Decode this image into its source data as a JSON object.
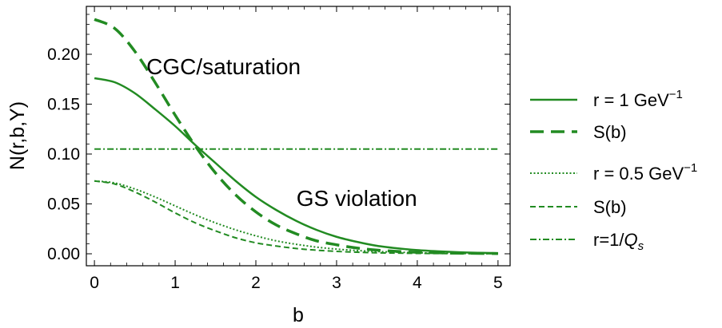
{
  "chart_data": {
    "type": "line",
    "xlabel": "b",
    "ylabel": "N(r,b,Y)",
    "xlim": [
      -0.1,
      5.15
    ],
    "ylim": [
      -0.012,
      0.248
    ],
    "x_ticks": [
      0,
      1,
      2,
      3,
      4,
      5
    ],
    "x_tick_labels": [
      "0",
      "1",
      "2",
      "3",
      "4",
      "5"
    ],
    "y_ticks": [
      0.0,
      0.05,
      0.1,
      0.15,
      0.2
    ],
    "y_tick_labels": [
      "0.00",
      "0.05",
      "0.10",
      "0.15",
      "0.20"
    ],
    "grid": false,
    "legend_position": "right",
    "color": "#228B22",
    "annotations": [
      {
        "text": "CGC/saturation",
        "x": 1.6,
        "y": 0.18
      },
      {
        "text": "GS violation",
        "x": 3.25,
        "y": 0.048
      }
    ],
    "x": [
      0,
      0.25,
      0.5,
      0.75,
      1.0,
      1.25,
      1.5,
      1.75,
      2.0,
      2.25,
      2.5,
      2.75,
      3.0,
      3.25,
      3.5,
      3.75,
      4.0,
      4.25,
      4.5,
      4.75,
      5.0
    ],
    "series": [
      {
        "name": "r = 1 GeV⁻¹",
        "style": "solid",
        "values": [
          0.176,
          0.172,
          0.161,
          0.145,
          0.128,
          0.109,
          0.091,
          0.073,
          0.057,
          0.044,
          0.033,
          0.024,
          0.017,
          0.012,
          0.008,
          0.0055,
          0.0037,
          0.0025,
          0.0016,
          0.001,
          0.0007
        ]
      },
      {
        "name": "S(b)",
        "style": "long-dash",
        "values": [
          0.235,
          0.226,
          0.203,
          0.172,
          0.139,
          0.108,
          0.081,
          0.059,
          0.042,
          0.029,
          0.02,
          0.013,
          0.009,
          0.0058,
          0.0037,
          0.0024,
          0.0015,
          0.001,
          0.0006,
          0.0004,
          0.0002
        ]
      },
      {
        "name": "r = 0.5  GeV⁻¹",
        "style": "dotted",
        "values": [
          0.073,
          0.071,
          0.065,
          0.057,
          0.048,
          0.039,
          0.031,
          0.024,
          0.018,
          0.013,
          0.0095,
          0.0067,
          0.0047,
          0.0033,
          0.0023,
          0.0016,
          0.0011,
          0.0007,
          0.0005,
          0.0003,
          0.0002
        ]
      },
      {
        "name": "S(b)",
        "style": "short-dash",
        "values": [
          0.073,
          0.07,
          0.062,
          0.052,
          0.041,
          0.031,
          0.023,
          0.016,
          0.011,
          0.0078,
          0.0053,
          0.0036,
          0.0024,
          0.0016,
          0.001,
          0.0007,
          0.0004,
          0.0003,
          0.0002,
          0.0001,
          0.0001
        ]
      },
      {
        "name": "r=1/Qs",
        "style": "dash-dot",
        "values": [
          0.105,
          0.105,
          0.105,
          0.105,
          0.105,
          0.105,
          0.105,
          0.105,
          0.105,
          0.105,
          0.105,
          0.105,
          0.105,
          0.105,
          0.105,
          0.105,
          0.105,
          0.105,
          0.105,
          0.105,
          0.105
        ]
      }
    ]
  }
}
